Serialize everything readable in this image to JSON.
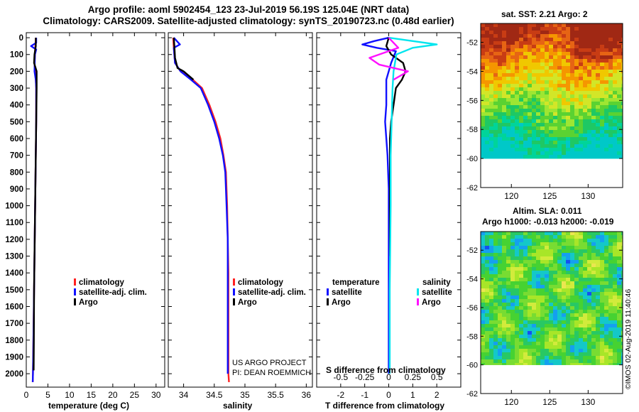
{
  "header": {
    "line1": "Argo profile: aoml 5902454_123 23-Jul-2019 56.19S 125.04E (NRT data)",
    "line2": "Climatology: CARS2009. Satellite-adjusted climatology: synTS_20190723.nc (0.48d earlier)"
  },
  "colors": {
    "climatology": "#ff2020",
    "satellite": "#1010ff",
    "argo": "#000000",
    "sal_satellite": "#00e5ee",
    "sal_argo": "#ff10ff"
  },
  "credits": {
    "line1": "US ARGO PROJECT",
    "line2": "PI: DEAN ROEMMICH"
  },
  "stamp": "©IMOS 02-Aug-2019 11:40:46",
  "chart_data": [
    {
      "id": "temperature",
      "type": "line",
      "xlabel": "temperature (deg C)",
      "ylabel": "",
      "xlim": [
        0,
        32
      ],
      "ylim": [
        2080,
        -30
      ],
      "x_ticks": [
        0,
        5,
        10,
        15,
        20,
        25,
        30
      ],
      "y_ticks": [
        0,
        100,
        200,
        300,
        400,
        500,
        600,
        700,
        800,
        900,
        1000,
        1100,
        1200,
        1300,
        1400,
        1500,
        1600,
        1700,
        1800,
        1900,
        2000
      ],
      "legend": [
        "climatology",
        "satellite-adj. clim.",
        "Argo"
      ],
      "series": [
        {
          "name": "climatology",
          "x": [
            2.2,
            2.2,
            2.1,
            2.0,
            1.9,
            2.0,
            2.2,
            2.3,
            2.3,
            2.3,
            2.2,
            2.1,
            2.0,
            1.9,
            1.8,
            1.7,
            1.6,
            1.55,
            1.5
          ],
          "y": [
            0,
            20,
            50,
            100,
            150,
            200,
            250,
            300,
            400,
            500,
            700,
            900,
            1100,
            1300,
            1500,
            1700,
            1900,
            2000,
            2050
          ]
        },
        {
          "name": "satellite-adj. clim.",
          "x": [
            2.3,
            2.3,
            1.1,
            2.3,
            2.0,
            1.9,
            2.2,
            2.3,
            2.3,
            2.3,
            2.2,
            2.1,
            2.0,
            1.9,
            1.8,
            1.7,
            1.6,
            1.55,
            1.5
          ],
          "y": [
            0,
            30,
            50,
            70,
            100,
            200,
            250,
            300,
            400,
            500,
            700,
            900,
            1100,
            1300,
            1500,
            1700,
            1900,
            2000,
            2050
          ]
        },
        {
          "name": "Argo",
          "x": [
            2.2,
            2.2,
            1.9,
            1.8,
            2.4,
            2.4,
            2.3,
            2.2,
            2.1,
            2.0,
            1.9,
            1.8,
            1.75,
            1.7
          ],
          "y": [
            0,
            50,
            100,
            150,
            200,
            300,
            500,
            700,
            900,
            1100,
            1300,
            1500,
            1800,
            1980
          ]
        }
      ]
    },
    {
      "id": "salinity",
      "type": "line",
      "xlabel": "salinity",
      "ylabel": "",
      "xlim": [
        33.75,
        36.1
      ],
      "ylim": [
        2080,
        -30
      ],
      "x_ticks": [
        34,
        34.5,
        35,
        35.5,
        36
      ],
      "x_tick_labels": [
        "34",
        "34.5",
        "35",
        "35.5",
        "36"
      ],
      "legend": [
        "climatology",
        "satellite-adj. clim.",
        "Argo"
      ],
      "series": [
        {
          "name": "climatology",
          "x": [
            33.83,
            33.84,
            33.86,
            33.95,
            34.15,
            34.3,
            34.42,
            34.52,
            34.6,
            34.65,
            34.69,
            34.71,
            34.72,
            34.73,
            34.73,
            34.73,
            34.73,
            34.74
          ],
          "y": [
            0,
            60,
            150,
            200,
            250,
            300,
            400,
            500,
            600,
            700,
            800,
            1000,
            1200,
            1400,
            1600,
            1800,
            2000,
            2050
          ]
        },
        {
          "name": "satellite-adj. clim.",
          "x": [
            33.84,
            33.94,
            33.84,
            33.86,
            33.95,
            34.12,
            34.28,
            34.4,
            34.5,
            34.58,
            34.64,
            34.68,
            34.7,
            34.72,
            34.72,
            34.72,
            34.72,
            34.72
          ],
          "y": [
            0,
            40,
            60,
            150,
            200,
            250,
            300,
            400,
            500,
            600,
            700,
            800,
            1000,
            1200,
            1400,
            1600,
            1800,
            2000
          ]
        },
        {
          "name": "Argo",
          "x": [
            33.84,
            33.85,
            33.86,
            33.9,
            34.0,
            34.16
          ],
          "y": [
            0,
            50,
            120,
            180,
            200,
            250
          ]
        }
      ]
    },
    {
      "id": "difference",
      "type": "line",
      "xlabel": "T difference from climatology",
      "xlabel_top": "S difference from climatology",
      "xlim": [
        -3,
        3
      ],
      "ylim": [
        2080,
        -30
      ],
      "x_ticks": [
        -2,
        -1,
        0,
        1,
        2
      ],
      "x_tick_labels": [
        "-2",
        "-1",
        "0",
        "1",
        "2"
      ],
      "s_ticks": [
        -0.5,
        -0.25,
        0,
        0.25,
        0.5
      ],
      "s_tick_labels": [
        "-0.5",
        "-0.25",
        "0",
        "0.25",
        "0.5"
      ],
      "legend_temperature": {
        "title": "temperature",
        "items": [
          "satellite",
          "Argo"
        ]
      },
      "legend_salinity": {
        "title": "salinity",
        "items": [
          "satellite",
          "Argo"
        ]
      },
      "series": [
        {
          "name": "T satellite",
          "x": [
            0.0,
            -0.6,
            -1.1,
            -0.5,
            0.3,
            0.1,
            -0.1,
            -0.1,
            -0.15,
            -0.1,
            -0.05,
            0.0,
            0.0,
            0.0,
            0.0
          ],
          "y": [
            0,
            20,
            40,
            60,
            80,
            150,
            250,
            400,
            500,
            600,
            700,
            900,
            1200,
            1600,
            2000
          ]
        },
        {
          "name": "T Argo",
          "x": [
            0.0,
            -0.1,
            0.1,
            0.6,
            0.7,
            0.55,
            0.3,
            0.2,
            0.1,
            0.05,
            0.05,
            0.05,
            0.05
          ],
          "y": [
            0,
            50,
            100,
            150,
            200,
            250,
            300,
            400,
            500,
            600,
            800,
            1000,
            1300
          ]
        },
        {
          "name": "S satellite",
          "x": [
            0.0,
            0.5,
            0.25,
            0.08,
            0.05,
            0.04,
            0.03,
            0.02,
            0.02,
            0.01,
            0.01
          ],
          "y": [
            0,
            40,
            60,
            100,
            200,
            300,
            500,
            700,
            1000,
            1500,
            2000
          ]
        },
        {
          "name": "S Argo",
          "x": [
            0.0,
            0.1,
            -0.2,
            -0.1,
            0.2,
            0.05
          ],
          "y": [
            0,
            60,
            120,
            160,
            200,
            250
          ]
        }
      ]
    },
    {
      "id": "sst_map",
      "type": "heatmap",
      "title": "sat. SST: 2.21 Argo: 2",
      "x_ticks": [
        120,
        125,
        130
      ],
      "y_ticks": [
        -52,
        -54,
        -56,
        -58,
        -60,
        -62
      ],
      "xlim": [
        116,
        134.5
      ],
      "ylim": [
        -62,
        -50.7
      ],
      "data_bottom": -60
    },
    {
      "id": "sla_map",
      "type": "heatmap",
      "title": "Altim. SLA: 0.011",
      "subtitle": "Argo h1000: -0.013 h2000: -0.019",
      "x_ticks": [
        120,
        125,
        130
      ],
      "y_ticks": [
        -52,
        -54,
        -56,
        -58,
        -60,
        -62
      ],
      "xlim": [
        116,
        134.5
      ],
      "ylim": [
        -62,
        -50.7
      ],
      "data_bottom": -60
    }
  ]
}
